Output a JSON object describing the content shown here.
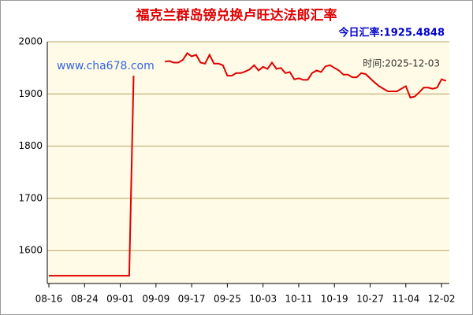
{
  "chart_data": {
    "type": "line",
    "title": "福克兰群岛镑兑换卢旺达法郎汇率",
    "today_rate": "今日汇率:1925.4848",
    "watermark": "www.cha678.com",
    "time": "时间:2025-12-03",
    "categories": [
      "08-16",
      null,
      null,
      null,
      null,
      null,
      null,
      null,
      "08-24",
      null,
      null,
      null,
      null,
      null,
      null,
      null,
      "09-01",
      null,
      null,
      null,
      null,
      null,
      null,
      null,
      "09-09",
      null,
      null,
      null,
      null,
      null,
      null,
      null,
      "09-17",
      null,
      null,
      null,
      null,
      null,
      null,
      null,
      "09-25",
      null,
      null,
      null,
      null,
      null,
      null,
      null,
      "10-03",
      null,
      null,
      null,
      null,
      null,
      null,
      null,
      "10-11",
      null,
      null,
      null,
      null,
      null,
      null,
      null,
      "10-19",
      null,
      null,
      null,
      null,
      null,
      null,
      null,
      "10-27",
      null,
      null,
      null,
      null,
      null,
      null,
      null,
      "11-04",
      null,
      null,
      null,
      null,
      null,
      null,
      null,
      "12-02",
      null
    ],
    "values": [
      1552,
      1552,
      1552,
      1552,
      1552,
      1552,
      1552,
      1552,
      1552,
      1552,
      1552,
      1552,
      1552,
      1552,
      1552,
      1552,
      1552,
      1552,
      1552,
      1935,
      null,
      null,
      null,
      null,
      null,
      null,
      1962,
      1963,
      1960,
      1960,
      1965,
      1978,
      1972,
      1975,
      1960,
      1958,
      1975,
      1958,
      1958,
      1955,
      1935,
      1935,
      1940,
      1940,
      1943,
      1947,
      1955,
      1945,
      1952,
      1948,
      1960,
      1948,
      1950,
      1940,
      1942,
      1928,
      1930,
      1927,
      1927,
      1940,
      1945,
      1942,
      1953,
      1955,
      1950,
      1945,
      1937,
      1937,
      1932,
      1932,
      1940,
      1938,
      1930,
      1922,
      1915,
      1910,
      1905,
      1905,
      1905,
      1910,
      1915,
      1893,
      1895,
      1903,
      1912,
      1912,
      1910,
      1912,
      1928,
      1925
    ],
    "color": "#e00000",
    "ylim": [
      1537,
      2000
    ],
    "yticks": [
      1600,
      1700,
      1800,
      1900,
      2000
    ],
    "grid": true
  }
}
